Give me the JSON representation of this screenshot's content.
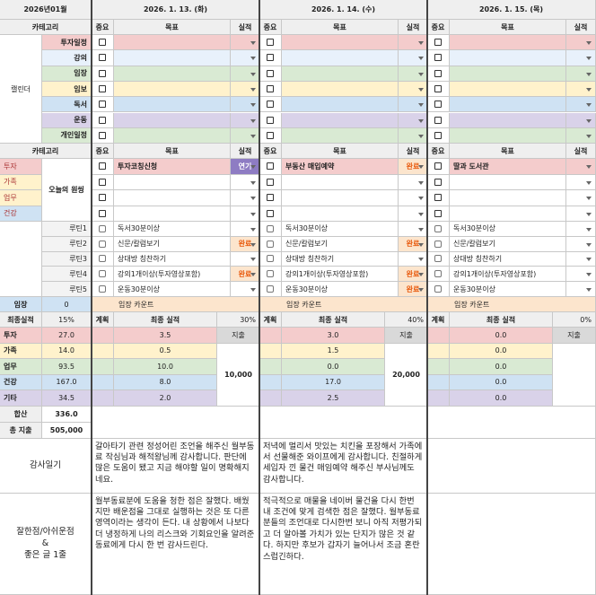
{
  "header": {
    "month": "2026년01월",
    "days": [
      "2026. 1. 13. (화)",
      "2026. 1. 14. (수)",
      "2026. 1. 15. (목)"
    ]
  },
  "columns": {
    "category": "카테고리",
    "importance": "중요",
    "goal": "목표",
    "result": "실적"
  },
  "calendar": {
    "label": "캘린더",
    "rows": [
      "투자일정",
      "강의",
      "임장",
      "임보",
      "독서",
      "운동",
      "개인일정"
    ]
  },
  "today": {
    "label": "오늘의 원씽",
    "categories": [
      "투자",
      "가족",
      "업무",
      "건강"
    ],
    "days": [
      {
        "goal": "투자코칭신청",
        "result": "연기"
      },
      {
        "goal": "부동산 매입예약",
        "result": "완료"
      },
      {
        "goal": "딸과 도서관"
      }
    ]
  },
  "routines": {
    "labels": [
      "루틴1",
      "루틴2",
      "루틴3",
      "루틴4",
      "루틴5"
    ],
    "days": [
      [
        {
          "text": "독서30분이상"
        },
        {
          "text": "신문/칼럼보기",
          "result": "완료"
        },
        {
          "text": "상대방 칭찬하기"
        },
        {
          "text": "강의1개이상(투자영상포함)",
          "result": "완료"
        },
        {
          "text": "운동30분이상"
        }
      ],
      [
        {
          "text": "독서30분이상"
        },
        {
          "text": "신문/칼럼보기",
          "result": "완료"
        },
        {
          "text": "상대방 칭찬하기"
        },
        {
          "text": "강의1개이상(투자영상포함)",
          "result": "완료"
        },
        {
          "text": "운동30분이상",
          "result": "완료"
        }
      ],
      [
        {
          "text": "독서30분이상"
        },
        {
          "text": "신문/칼럼보기"
        },
        {
          "text": "상대방 칭찬하기"
        },
        {
          "text": "강의1개이상(투자영상포함)"
        },
        {
          "text": "운동30분이상"
        }
      ]
    ]
  },
  "visit": {
    "label": "임장",
    "value": "0",
    "days": [
      "임장 카운트",
      "임장 카운트",
      "임장 카운트"
    ]
  },
  "performance": {
    "label": "최종실적",
    "value": "15%",
    "days": [
      {
        "plan": "계획",
        "final": "최종 실적",
        "rate": "30%"
      },
      {
        "plan": "계획",
        "final": "최종 실적",
        "rate": "40%"
      },
      {
        "plan": "계획",
        "final": "최종 실적",
        "rate": "0%"
      }
    ]
  },
  "finance": {
    "categories": [
      "투자",
      "가족",
      "업무",
      "건강",
      "기타"
    ],
    "totals": [
      "27.0",
      "14.0",
      "93.5",
      "167.0",
      "34.5"
    ],
    "days": [
      {
        "values": [
          "3.5",
          "0.5",
          "10.0",
          "8.0",
          "2.0"
        ],
        "expense_label": "지출",
        "expense": "10,000"
      },
      {
        "values": [
          "3.0",
          "1.5",
          "0.0",
          "17.0",
          "2.5"
        ],
        "expense_label": "지출",
        "expense": "20,000"
      },
      {
        "values": [
          "0.0",
          "0.0",
          "0.0",
          "0.0",
          "0.0"
        ],
        "expense_label": "지출"
      }
    ]
  },
  "sum": {
    "label": "합산",
    "value": "336.0"
  },
  "total_expense": {
    "label": "총 지출",
    "value": "505,000"
  },
  "gratitude": {
    "label": "감사일기",
    "entries": [
      "갈아타기 관련 정성어린 조언을 해주신 월부동료 작심님과 해적왕님께 감사합니다. 판단에 많은 도움이 됐고 지금 해야할 일이 명확해지네요.",
      "저녁에 멀리서 맛있는 치킨을 포장해서 가족에서 선물해준 와이프에게 감사합니다. 친절하게 세입자 낀 물건 매임예약 해주신 부사님께도 감사합니다."
    ]
  },
  "reflection": {
    "label": "잘한점/아쉬운점\n&\n좋은 글 1줄",
    "entries": [
      "월부동료분에 도움을 청한 점은 잘했다. 배웠지만 배운점을 그대로 실행하는 것은 또 다른 영역이라는 생각이 든다. 내 상황에서 나보다 더 냉정하게 나의 리스크와 기회요인을 알려준 동료에게 다시 한 번 감사드린다.",
      "적극적으로 매물을 네이버 물건을 다시 한번 내 조건에 맞게 검색한 점은 잘했다. 월부동료 분들의 조언대로 다시한번 보니 아직 저평가되고 더 알아볼 가치가 있는 단지가 많은 것 같다. 하지만 후보가 갑자기 늘어나서 조금 혼란스럽긴하다."
    ]
  }
}
